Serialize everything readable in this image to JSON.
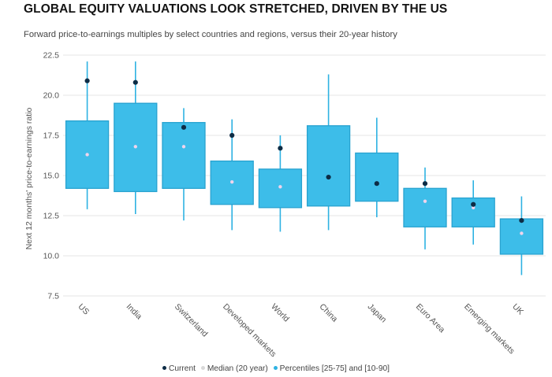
{
  "title": "GLOBAL EQUITY VALUATIONS LOOK STRETCHED, DRIVEN BY THE US",
  "subtitle": "Forward price-to-earnings multiples by select countries and regions, versus their 20-year history",
  "colors": {
    "box_fill": "#3dbde9",
    "box_stroke": "#29a3d0",
    "whisker": "#2eb2e2",
    "current": "#0d2c45",
    "median": "#f0d4ec",
    "grid": "#e6e6e6",
    "legend_percentiles": "#2eb2e2",
    "legend_median": "#d8d8d8"
  },
  "chart_data": {
    "type": "box",
    "title": "GLOBAL EQUITY VALUATIONS LOOK STRETCHED, DRIVEN BY THE US",
    "ylabel": "Next 12 months' price-to-earnings ratio",
    "xlabel": "",
    "ylim": [
      7.5,
      22.5
    ],
    "yticks": [
      7.5,
      10.0,
      12.5,
      15.0,
      17.5,
      20.0,
      22.5
    ],
    "ytick_labels": [
      "7.5",
      "10.0",
      "12.5",
      "15.0",
      "17.5",
      "20.0",
      "22.5"
    ],
    "grid": true,
    "legend_position": "bottom-center",
    "legend": [
      "Current",
      "Median (20 year)",
      "Percentiles [25-75] and [10-90]"
    ],
    "categories": [
      "US",
      "India",
      "Switzerland",
      "Developed markets",
      "World",
      "China",
      "Japan",
      "Euro Area",
      "Emerging markets",
      "UK"
    ],
    "series": [
      {
        "name": "10th percentile",
        "values": [
          12.9,
          12.6,
          12.2,
          11.6,
          11.5,
          11.6,
          12.4,
          10.4,
          10.7,
          8.8
        ]
      },
      {
        "name": "25th percentile",
        "values": [
          14.2,
          14.0,
          14.2,
          13.2,
          13.0,
          13.1,
          13.4,
          11.8,
          11.8,
          10.1
        ]
      },
      {
        "name": "Median (20 year)",
        "values": [
          16.3,
          16.8,
          16.8,
          14.6,
          14.3,
          14.9,
          14.5,
          13.4,
          13.0,
          11.4
        ]
      },
      {
        "name": "75th percentile",
        "values": [
          18.4,
          19.5,
          18.3,
          15.9,
          15.4,
          18.1,
          16.4,
          14.2,
          13.6,
          12.3
        ]
      },
      {
        "name": "90th percentile",
        "values": [
          22.1,
          22.1,
          19.2,
          18.5,
          17.5,
          21.3,
          18.6,
          15.5,
          14.7,
          13.7
        ]
      },
      {
        "name": "Current",
        "values": [
          20.9,
          20.8,
          18.0,
          17.5,
          16.7,
          14.9,
          14.5,
          14.5,
          13.2,
          12.2
        ]
      }
    ]
  }
}
